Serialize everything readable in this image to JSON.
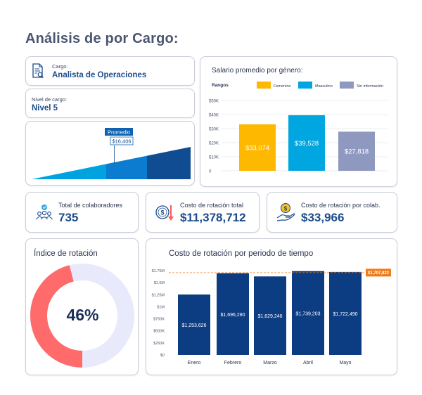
{
  "page": {
    "title": "Análisis de por Cargo:"
  },
  "cargo": {
    "label": "Cargo:",
    "value": "Analista de Operaciones",
    "icon": "document-search-icon"
  },
  "nivel": {
    "label": "Nivel de cargo:",
    "value": "Nivel 5"
  },
  "promedio": {
    "label": "Promedio",
    "value": "$16,406",
    "position": 0.52,
    "colors": [
      "#00a3e0",
      "#0b7ccf",
      "#0f4c92"
    ]
  },
  "salario": {
    "title": "Salario promedio por género:",
    "rangos_label": "Rangos"
  },
  "kpis": {
    "total": {
      "label": "Total de colaboradores",
      "value": "735",
      "icon": "people-icon"
    },
    "costo_total": {
      "label": "Costo de rotación total",
      "value": "$11,378,712",
      "icon": "coin-down-arrow-icon"
    },
    "costo_colab": {
      "label": "Costo de rotación por colab.",
      "value": "$33,966",
      "icon": "hand-coin-icon"
    }
  },
  "indice": {
    "title": "Índice de rotación",
    "value": "46%",
    "percent": 46,
    "colors": {
      "filled": "#ff6b6b",
      "rest": "#e8e9fb"
    }
  },
  "periodo": {
    "title": "Costo de rotación por periodo de tiempo"
  },
  "chart_data": [
    {
      "type": "bar",
      "title": "Salario promedio por género:",
      "categories": [
        "Femenino",
        "Masculino",
        "Sin información"
      ],
      "values": [
        33074,
        39528,
        27818
      ],
      "value_labels": [
        "$33,074",
        "$39,528",
        "$27,818"
      ],
      "colors": [
        "#ffb800",
        "#00a6e0",
        "#8f99c0"
      ],
      "legend": [
        "Femenino",
        "Masculino",
        "Sin información"
      ],
      "legend_position": "top",
      "ylabel": "Rangos",
      "ylim": [
        0,
        50000
      ],
      "yticks": [
        0,
        10000,
        20000,
        30000,
        40000,
        50000
      ],
      "ytick_labels": [
        "0",
        "$10K",
        "$20K",
        "$30K",
        "$40K",
        "$50K"
      ],
      "grid": true
    },
    {
      "type": "bar",
      "title": "Costo de rotación por periodo de tiempo",
      "categories": [
        "Enero",
        "Febrero",
        "Marzo",
        "Abril",
        "Mayo"
      ],
      "values": [
        1253626,
        1696280,
        1629246,
        1739203,
        1722490
      ],
      "value_labels": [
        "$1,253,626",
        "$1,696,280",
        "$1,629,246",
        "$1,739,203",
        "$1,722,490"
      ],
      "color": "#0c3c82",
      "reference_line": {
        "value": 1707823,
        "label": "$1,707,823",
        "color": "#f07c1a"
      },
      "ylim": [
        0,
        1750000
      ],
      "yticks": [
        0,
        250000,
        500000,
        750000,
        1000000,
        1250000,
        1500000,
        1750000
      ],
      "ytick_labels": [
        "$0",
        "$250K",
        "$500K",
        "$750K",
        "$1M",
        "$1.25M",
        "$1.5M",
        "$1.75M"
      ],
      "grid": false
    }
  ]
}
